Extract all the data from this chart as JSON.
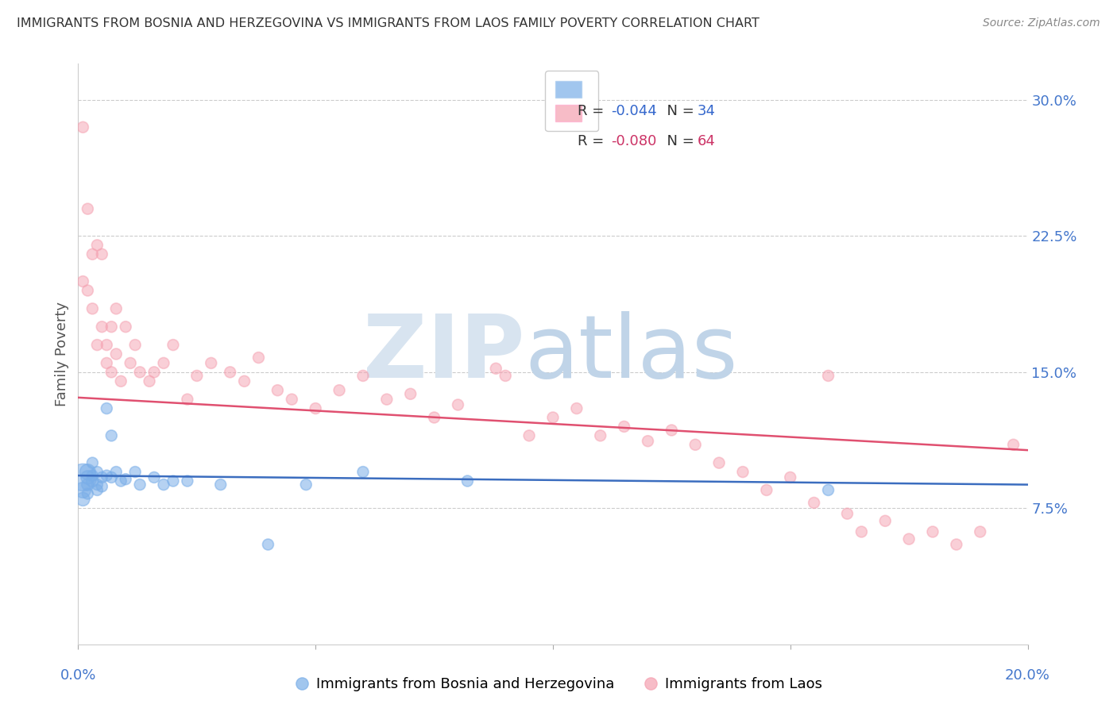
{
  "title": "IMMIGRANTS FROM BOSNIA AND HERZEGOVINA VS IMMIGRANTS FROM LAOS FAMILY POVERTY CORRELATION CHART",
  "source": "Source: ZipAtlas.com",
  "ylabel": "Family Poverty",
  "y_tick_vals": [
    0.075,
    0.15,
    0.225,
    0.3
  ],
  "y_tick_labels": [
    "7.5%",
    "15.0%",
    "22.5%",
    "30.0%"
  ],
  "xlim": [
    0.0,
    0.2
  ],
  "ylim": [
    0.0,
    0.32
  ],
  "legend_blue_r": "-0.044",
  "legend_blue_n": "34",
  "legend_pink_r": "-0.080",
  "legend_pink_n": "64",
  "blue_color": "#7aaee8",
  "pink_color": "#f5a0b0",
  "blue_edge": "#5588cc",
  "pink_edge": "#e06080",
  "trendline_blue": "#3b6dbf",
  "trendline_pink": "#e05070",
  "blue_trendline_start_y": 0.093,
  "blue_trendline_end_y": 0.088,
  "pink_trendline_start_y": 0.136,
  "pink_trendline_end_y": 0.107,
  "blue_scatter_x": [
    0.001,
    0.001,
    0.001,
    0.002,
    0.002,
    0.002,
    0.002,
    0.003,
    0.003,
    0.003,
    0.004,
    0.004,
    0.004,
    0.005,
    0.005,
    0.006,
    0.006,
    0.007,
    0.007,
    0.008,
    0.009,
    0.01,
    0.012,
    0.013,
    0.016,
    0.018,
    0.02,
    0.023,
    0.03,
    0.04,
    0.048,
    0.06,
    0.082,
    0.158
  ],
  "blue_scatter_y": [
    0.092,
    0.085,
    0.08,
    0.095,
    0.092,
    0.088,
    0.083,
    0.09,
    0.1,
    0.093,
    0.088,
    0.095,
    0.085,
    0.092,
    0.087,
    0.13,
    0.093,
    0.115,
    0.092,
    0.095,
    0.09,
    0.091,
    0.095,
    0.088,
    0.092,
    0.088,
    0.09,
    0.09,
    0.088,
    0.055,
    0.088,
    0.095,
    0.09,
    0.085
  ],
  "blue_scatter_sizes": [
    600,
    200,
    150,
    200,
    150,
    120,
    100,
    120,
    100,
    100,
    100,
    100,
    100,
    100,
    100,
    100,
    100,
    100,
    100,
    100,
    100,
    100,
    100,
    100,
    100,
    100,
    100,
    100,
    100,
    100,
    100,
    100,
    100,
    100
  ],
  "pink_scatter_x": [
    0.001,
    0.001,
    0.002,
    0.002,
    0.003,
    0.003,
    0.004,
    0.004,
    0.005,
    0.005,
    0.006,
    0.006,
    0.007,
    0.007,
    0.008,
    0.008,
    0.009,
    0.01,
    0.011,
    0.012,
    0.013,
    0.015,
    0.016,
    0.018,
    0.02,
    0.023,
    0.025,
    0.028,
    0.032,
    0.035,
    0.038,
    0.042,
    0.045,
    0.05,
    0.055,
    0.06,
    0.065,
    0.07,
    0.075,
    0.08,
    0.088,
    0.09,
    0.095,
    0.1,
    0.105,
    0.11,
    0.115,
    0.12,
    0.125,
    0.13,
    0.135,
    0.14,
    0.145,
    0.15,
    0.155,
    0.158,
    0.162,
    0.165,
    0.17,
    0.175,
    0.18,
    0.185,
    0.19,
    0.197
  ],
  "pink_scatter_y": [
    0.285,
    0.2,
    0.195,
    0.24,
    0.215,
    0.185,
    0.22,
    0.165,
    0.175,
    0.215,
    0.165,
    0.155,
    0.15,
    0.175,
    0.16,
    0.185,
    0.145,
    0.175,
    0.155,
    0.165,
    0.15,
    0.145,
    0.15,
    0.155,
    0.165,
    0.135,
    0.148,
    0.155,
    0.15,
    0.145,
    0.158,
    0.14,
    0.135,
    0.13,
    0.14,
    0.148,
    0.135,
    0.138,
    0.125,
    0.132,
    0.152,
    0.148,
    0.115,
    0.125,
    0.13,
    0.115,
    0.12,
    0.112,
    0.118,
    0.11,
    0.1,
    0.095,
    0.085,
    0.092,
    0.078,
    0.148,
    0.072,
    0.062,
    0.068,
    0.058,
    0.062,
    0.055,
    0.062,
    0.11
  ],
  "pink_scatter_sizes": [
    100,
    100,
    100,
    100,
    100,
    100,
    100,
    100,
    100,
    100,
    100,
    100,
    100,
    100,
    100,
    100,
    100,
    100,
    100,
    100,
    100,
    100,
    100,
    100,
    100,
    100,
    100,
    100,
    100,
    100,
    100,
    100,
    100,
    100,
    100,
    100,
    100,
    100,
    100,
    100,
    100,
    100,
    100,
    100,
    100,
    100,
    100,
    100,
    100,
    100,
    100,
    100,
    100,
    100,
    100,
    100,
    100,
    100,
    100,
    100,
    100,
    100,
    100,
    100
  ]
}
